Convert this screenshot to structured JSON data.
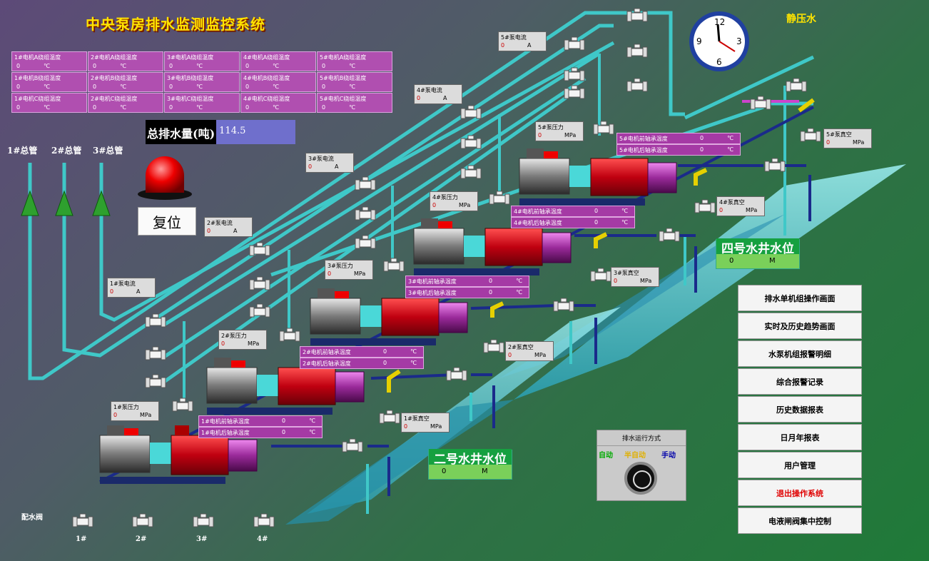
{
  "title": "中央泵房排水监测监控系统",
  "static_water": "静压水",
  "clock": {
    "numbers": [
      "12",
      "3",
      "6",
      "9"
    ]
  },
  "winding_temps": [
    [
      "1#电机A绕组温度",
      "2#电机A绕组温度",
      "3#电机A绕组温度",
      "4#电机A绕组温度",
      "5#电机A绕组温度"
    ],
    [
      "1#电机B绕组温度",
      "2#电机B绕组温度",
      "3#电机B绕组温度",
      "4#电机B绕组温度",
      "5#电机B绕组温度"
    ],
    [
      "1#电机C绕组温度",
      "2#电机C绕组温度",
      "3#电机C绕组温度",
      "4#电机C绕组温度",
      "5#电机C绕组温度"
    ]
  ],
  "temp_value": "0",
  "temp_unit": "℃",
  "total": {
    "label": "总排水量(吨)",
    "value": "114.5"
  },
  "reset_label": "复位",
  "mains": [
    "1#总管",
    "2#总管",
    "3#总管"
  ],
  "pump_tags": {
    "current": [
      {
        "label": "5#泵电流",
        "value": "0",
        "unit": "A"
      },
      {
        "label": "4#泵电流",
        "value": "0",
        "unit": "A"
      },
      {
        "label": "3#泵电流",
        "value": "0",
        "unit": "A"
      },
      {
        "label": "2#泵电流",
        "value": "0",
        "unit": "A"
      },
      {
        "label": "1#泵电流",
        "value": "0",
        "unit": "A"
      }
    ],
    "pressure": [
      {
        "label": "5#泵压力",
        "value": "0",
        "unit": "MPa"
      },
      {
        "label": "4#泵压力",
        "value": "0",
        "unit": "MPa"
      },
      {
        "label": "3#泵压力",
        "value": "0",
        "unit": "MPa"
      },
      {
        "label": "2#泵压力",
        "value": "0",
        "unit": "MPa"
      },
      {
        "label": "1#泵压力",
        "value": "0",
        "unit": "MPa"
      }
    ],
    "vacuum": [
      {
        "label": "5#泵真空",
        "value": "0",
        "unit": "MPa"
      },
      {
        "label": "4#泵真空",
        "value": "0",
        "unit": "MPa"
      },
      {
        "label": "3#泵真空",
        "value": "0",
        "unit": "MPa"
      },
      {
        "label": "2#泵真空",
        "value": "0",
        "unit": "MPa"
      },
      {
        "label": "1#泵真空",
        "value": "0",
        "unit": "MPa"
      }
    ]
  },
  "bearings": [
    {
      "front": "5#电机前轴承温度",
      "rear": "5#电机后轴承温度"
    },
    {
      "front": "4#电机前轴承温度",
      "rear": "4#电机后轴承温度"
    },
    {
      "front": "3#电机前轴承温度",
      "rear": "3#电机后轴承温度"
    },
    {
      "front": "2#电机前轴承温度",
      "rear": "2#电机后轴承温度"
    },
    {
      "front": "1#电机前轴承温度",
      "rear": "1#电机后轴承温度"
    }
  ],
  "bearing_value": "0",
  "bearing_unit": "℃",
  "wells": [
    {
      "name": "四号水井水位",
      "value": "0",
      "unit": "M"
    },
    {
      "name": "二号水井水位",
      "value": "0",
      "unit": "M"
    }
  ],
  "menu": [
    "排水单机组操作画面",
    "实时及历史趋势画面",
    "水泵机组报警明细",
    "综合报警记录",
    "历史数据报表",
    "日月年报表",
    "用户管理",
    "退出操作系统",
    "电液闸阀集中控制"
  ],
  "mode": {
    "title": "排水运行方式",
    "auto": "自动",
    "semi": "半自动",
    "manual": "手动"
  },
  "dist_valve": {
    "label": "配水阀",
    "items": [
      "1#",
      "2#",
      "3#",
      "4#"
    ]
  },
  "colors": {
    "pipe": "#3fc8c8",
    "bearing_bg": "#a53aa5",
    "temp_bg": "#b04fb0",
    "exit_text": "#e00000",
    "title": "#ffe400"
  }
}
